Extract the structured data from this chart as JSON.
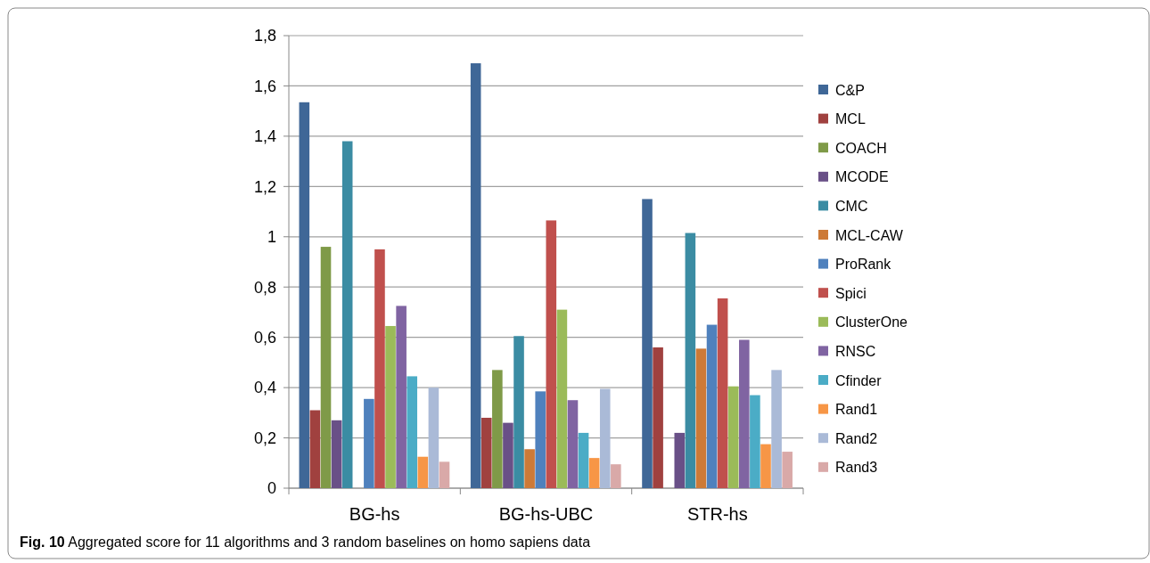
{
  "chart_data": {
    "type": "bar",
    "categories": [
      "BG-hs",
      "BG-hs-UBC",
      "STR-hs"
    ],
    "series": [
      {
        "name": "C&P",
        "color": "#3f6797",
        "values": [
          1.535,
          1.69,
          1.15
        ]
      },
      {
        "name": "MCL",
        "color": "#a0413f",
        "values": [
          0.31,
          0.28,
          0.56
        ]
      },
      {
        "name": "COACH",
        "color": "#7f9a48",
        "values": [
          0.96,
          0.47,
          0
        ]
      },
      {
        "name": "MCODE",
        "color": "#695087",
        "values": [
          0.27,
          0.26,
          0.22
        ]
      },
      {
        "name": "CMC",
        "color": "#3b8ca3",
        "values": [
          1.38,
          0.605,
          1.015
        ]
      },
      {
        "name": "MCL-CAW",
        "color": "#cd7a37",
        "values": [
          0,
          0.155,
          0.555
        ]
      },
      {
        "name": "ProRank",
        "color": "#4f81bd",
        "values": [
          0.355,
          0.385,
          0.65
        ]
      },
      {
        "name": "Spici",
        "color": "#c0504d",
        "values": [
          0.95,
          1.065,
          0.755
        ]
      },
      {
        "name": "ClusterOne",
        "color": "#9bbb59",
        "values": [
          0.645,
          0.71,
          0.405
        ]
      },
      {
        "name": "RNSC",
        "color": "#8064a2",
        "values": [
          0.725,
          0.35,
          0.59
        ]
      },
      {
        "name": "Cfinder",
        "color": "#4bacc6",
        "values": [
          0.445,
          0.22,
          0.37
        ]
      },
      {
        "name": "Rand1",
        "color": "#f79646",
        "values": [
          0.125,
          0.12,
          0.175
        ]
      },
      {
        "name": "Rand2",
        "color": "#aabad7",
        "values": [
          0.4,
          0.395,
          0.47
        ]
      },
      {
        "name": "Rand3",
        "color": "#d9a9a8",
        "values": [
          0.105,
          0.095,
          0.145
        ]
      }
    ],
    "ylim": [
      0,
      1.8
    ],
    "yticks": [
      0,
      {
        "value": 0.2,
        "label": "0,2"
      },
      {
        "value": 0.4,
        "label": "0,4"
      },
      {
        "value": 0.6,
        "label": "0,6"
      },
      {
        "value": 0.8,
        "label": "0,8"
      },
      1,
      {
        "value": 1.2,
        "label": "1,2"
      },
      {
        "value": 1.4,
        "label": "1,4"
      },
      {
        "value": 1.6,
        "label": "1,6"
      },
      {
        "value": 1.8,
        "label": "1,8"
      }
    ],
    "grid": "y",
    "legend": "right",
    "annotations": [
      "Fig. 10 Aggregated score for 11 algorithms and 3 random baselines on homo sapiens data"
    ]
  }
}
